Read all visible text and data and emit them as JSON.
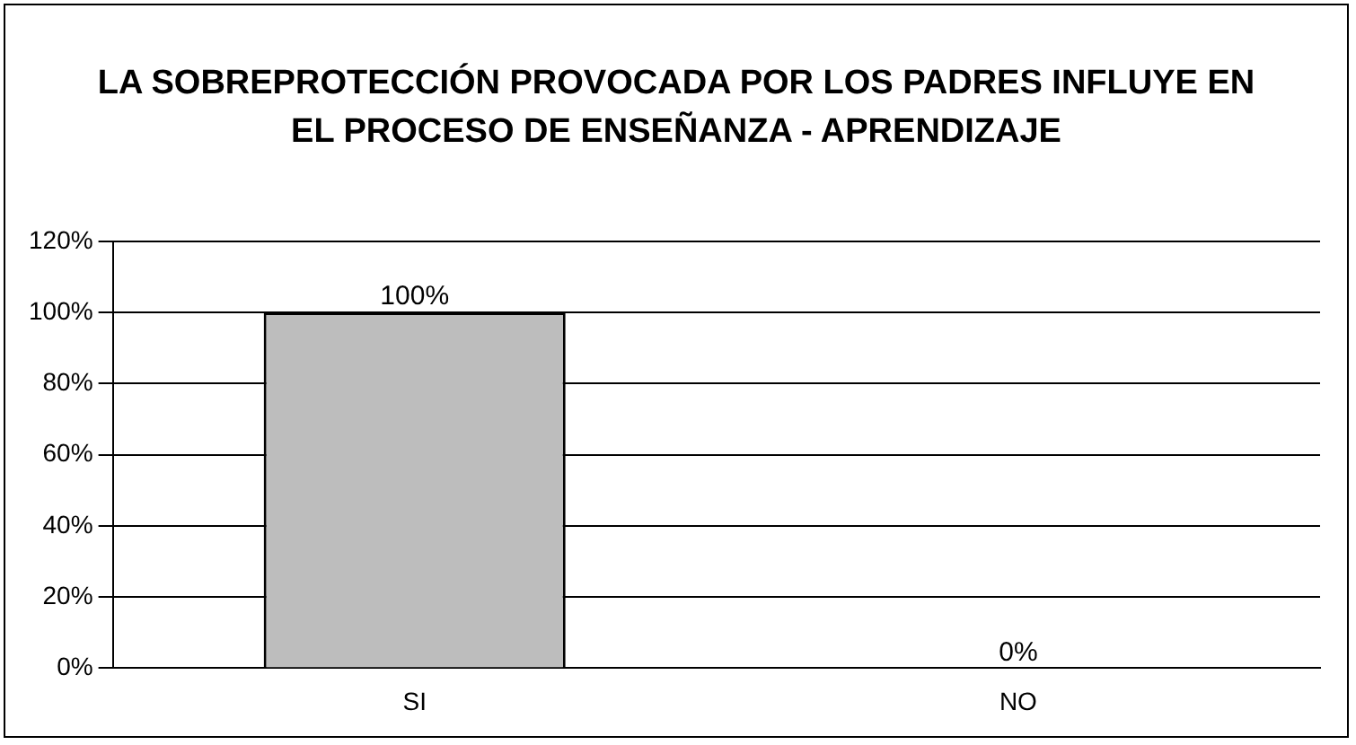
{
  "chart_data": {
    "type": "bar",
    "title": "LA SOBREPROTECCIÓN PROVOCADA POR LOS PADRES INFLUYE EN EL PROCESO DE ENSEÑANZA - APRENDIZAJE",
    "categories": [
      "SI",
      "NO"
    ],
    "values": [
      100,
      0
    ],
    "value_labels": [
      "100%",
      "0%"
    ],
    "color": "#bdbdbd",
    "ylim": [
      0,
      120
    ],
    "yticks": [
      {
        "value": 0,
        "label": "0%"
      },
      {
        "value": 20,
        "label": "20%"
      },
      {
        "value": 40,
        "label": "40%"
      },
      {
        "value": 60,
        "label": "60%"
      },
      {
        "value": 80,
        "label": "80%"
      },
      {
        "value": 100,
        "label": "100%"
      },
      {
        "value": 120,
        "label": "120%"
      }
    ],
    "grid": "y",
    "legend": false
  }
}
